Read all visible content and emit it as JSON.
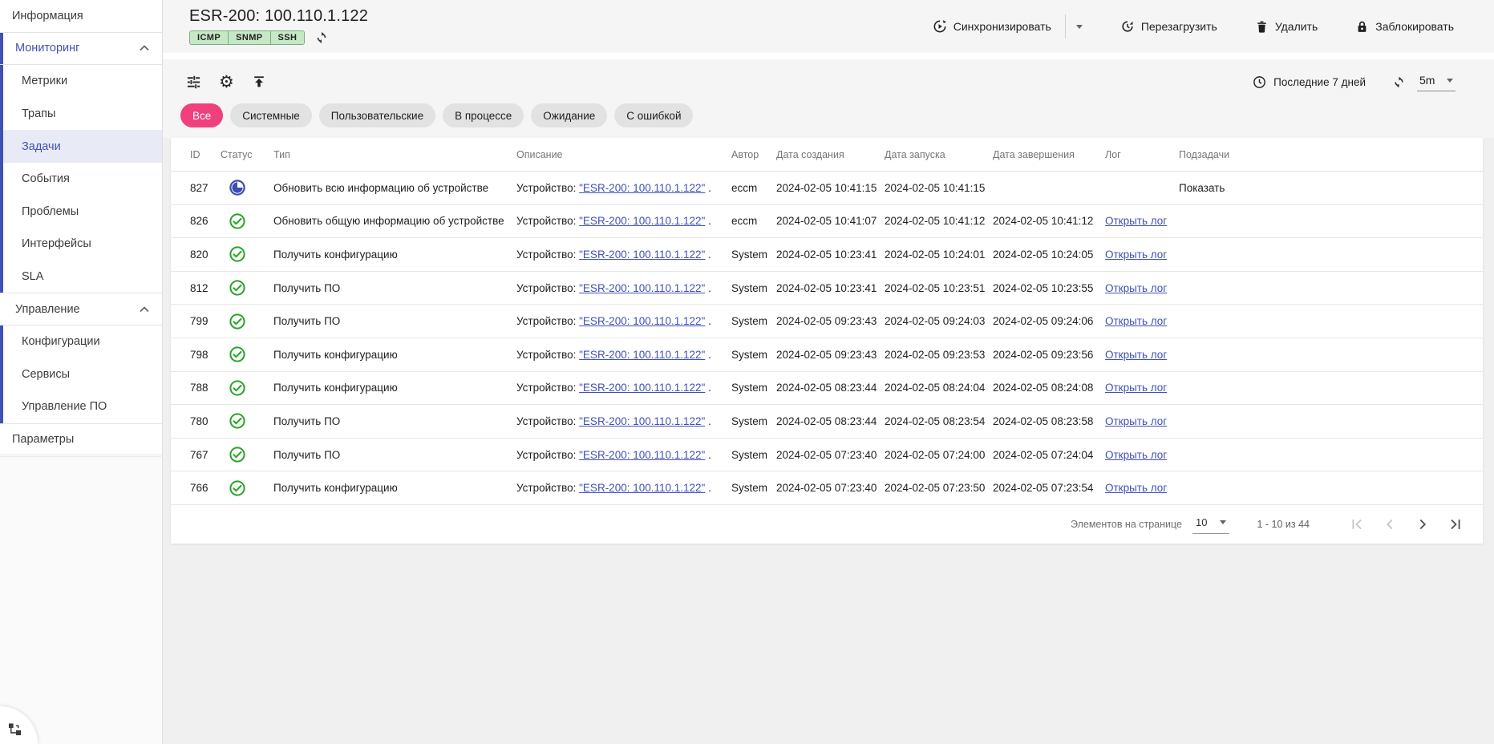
{
  "colors": {
    "accent": "#3f51b5",
    "chip_active_pink": "#f0407d",
    "success_green": "#27a327",
    "progress_blue": "#3b4db1",
    "badge_green_bg": "#c5e8c5"
  },
  "icons": {
    "gear": "⚙"
  },
  "sidebar": {
    "items": [
      {
        "name": "sidebar-item-information",
        "label": "Информация",
        "kind": "root",
        "divider_bottom": true
      },
      {
        "name": "sidebar-item-monitoring",
        "label": "Мониторинг",
        "kind": "group",
        "expanded": true,
        "accent": true,
        "bar": true,
        "divider_bottom": true
      },
      {
        "name": "sidebar-item-metrics",
        "label": "Метрики",
        "kind": "child",
        "bar": true
      },
      {
        "name": "sidebar-item-traps",
        "label": "Трапы",
        "kind": "child",
        "bar": true
      },
      {
        "name": "sidebar-item-tasks",
        "label": "Задачи",
        "kind": "child",
        "bar": true,
        "selected": true
      },
      {
        "name": "sidebar-item-events",
        "label": "События",
        "kind": "child",
        "bar": true
      },
      {
        "name": "sidebar-item-problems",
        "label": "Проблемы",
        "kind": "child",
        "bar": true
      },
      {
        "name": "sidebar-item-interfaces",
        "label": "Интерфейсы",
        "kind": "child",
        "bar": true
      },
      {
        "name": "sidebar-item-sla",
        "label": "SLA",
        "kind": "child",
        "bar": true
      },
      {
        "name": "sidebar-item-management",
        "label": "Управление",
        "kind": "group",
        "expanded": true,
        "divider_top": true,
        "divider_bottom": true
      },
      {
        "name": "sidebar-item-configurations",
        "label": "Конфигурации",
        "kind": "child",
        "bar": true
      },
      {
        "name": "sidebar-item-services",
        "label": "Сервисы",
        "kind": "child",
        "bar": true
      },
      {
        "name": "sidebar-item-software-management",
        "label": "Управление ПО",
        "kind": "child",
        "bar": true
      },
      {
        "name": "sidebar-item-parameters",
        "label": "Параметры",
        "kind": "root",
        "divider_top": true,
        "divider_bottom": true
      }
    ]
  },
  "header": {
    "device_title": "ESR-200: 100.110.1.122",
    "protocol_badges": [
      "ICMP",
      "SNMP",
      "SSH"
    ],
    "actions": {
      "sync": "Синхронизировать",
      "reboot": "Перезагрузить",
      "delete": "Удалить",
      "block": "Заблокировать"
    }
  },
  "toolbar": {
    "time_range": "Последние 7 дней",
    "refresh_interval": "5m"
  },
  "filters": {
    "chips": [
      {
        "name": "filter-chip-all",
        "label": "Все",
        "active": true
      },
      {
        "name": "filter-chip-system",
        "label": "Системные",
        "active": false
      },
      {
        "name": "filter-chip-user",
        "label": "Пользовательские",
        "active": false
      },
      {
        "name": "filter-chip-in-progress",
        "label": "В процессе",
        "active": false
      },
      {
        "name": "filter-chip-waiting",
        "label": "Ожидание",
        "active": false
      },
      {
        "name": "filter-chip-error",
        "label": "С ошибкой",
        "active": false
      }
    ]
  },
  "table": {
    "columns": [
      "ID",
      "Статус",
      "Тип",
      "Описание",
      "Автор",
      "Дата создания",
      "Дата запуска",
      "Дата завершения",
      "Лог",
      "Подзадачи"
    ],
    "description_prefix": "Устройство: ",
    "description_link": "\"ESR-200: 100.110.1.122\"",
    "description_suffix": " .",
    "log_link_label": "Открыть лог",
    "subtasks_label": "Показать",
    "rows": [
      {
        "id": "827",
        "status": "in_progress",
        "type": "Обновить всю информацию об устройстве",
        "author": "eccm",
        "created": "2024-02-05 10:41:15",
        "started": "2024-02-05 10:41:15",
        "finished": "",
        "has_log": false,
        "has_subtasks": true
      },
      {
        "id": "826",
        "status": "success",
        "type": "Обновить общую информацию об устройстве",
        "author": "eccm",
        "created": "2024-02-05 10:41:07",
        "started": "2024-02-05 10:41:12",
        "finished": "2024-02-05 10:41:12",
        "has_log": true,
        "has_subtasks": false
      },
      {
        "id": "820",
        "status": "success",
        "type": "Получить конфигурацию",
        "author": "System",
        "created": "2024-02-05 10:23:41",
        "started": "2024-02-05 10:24:01",
        "finished": "2024-02-05 10:24:05",
        "has_log": true,
        "has_subtasks": false
      },
      {
        "id": "812",
        "status": "success",
        "type": "Получить ПО",
        "author": "System",
        "created": "2024-02-05 10:23:41",
        "started": "2024-02-05 10:23:51",
        "finished": "2024-02-05 10:23:55",
        "has_log": true,
        "has_subtasks": false
      },
      {
        "id": "799",
        "status": "success",
        "type": "Получить ПО",
        "author": "System",
        "created": "2024-02-05 09:23:43",
        "started": "2024-02-05 09:24:03",
        "finished": "2024-02-05 09:24:06",
        "has_log": true,
        "has_subtasks": false
      },
      {
        "id": "798",
        "status": "success",
        "type": "Получить конфигурацию",
        "author": "System",
        "created": "2024-02-05 09:23:43",
        "started": "2024-02-05 09:23:53",
        "finished": "2024-02-05 09:23:56",
        "has_log": true,
        "has_subtasks": false
      },
      {
        "id": "788",
        "status": "success",
        "type": "Получить конфигурацию",
        "author": "System",
        "created": "2024-02-05 08:23:44",
        "started": "2024-02-05 08:24:04",
        "finished": "2024-02-05 08:24:08",
        "has_log": true,
        "has_subtasks": false
      },
      {
        "id": "780",
        "status": "success",
        "type": "Получить ПО",
        "author": "System",
        "created": "2024-02-05 08:23:44",
        "started": "2024-02-05 08:23:54",
        "finished": "2024-02-05 08:23:58",
        "has_log": true,
        "has_subtasks": false
      },
      {
        "id": "767",
        "status": "success",
        "type": "Получить ПО",
        "author": "System",
        "created": "2024-02-05 07:23:40",
        "started": "2024-02-05 07:24:00",
        "finished": "2024-02-05 07:24:04",
        "has_log": true,
        "has_subtasks": false
      },
      {
        "id": "766",
        "status": "success",
        "type": "Получить конфигурацию",
        "author": "System",
        "created": "2024-02-05 07:23:40",
        "started": "2024-02-05 07:23:50",
        "finished": "2024-02-05 07:23:54",
        "has_log": true,
        "has_subtasks": false
      }
    ]
  },
  "pagination": {
    "items_per_page_label": "Элементов на странице",
    "items_per_page": "10",
    "range": "1 - 10 из 44"
  }
}
